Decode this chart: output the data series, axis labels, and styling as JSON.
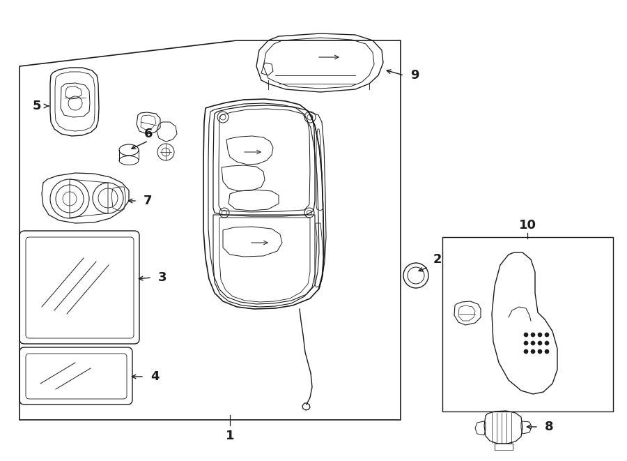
{
  "bg_color": "#ffffff",
  "line_color": "#1a1a1a",
  "lw": 1.0,
  "fig_w": 9.0,
  "fig_h": 6.61,
  "dpi": 100
}
